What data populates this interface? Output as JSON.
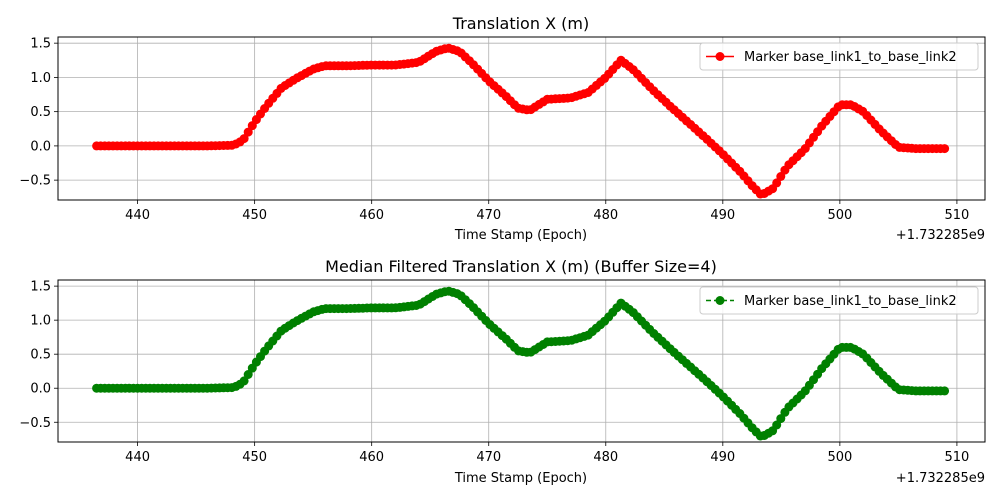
{
  "figure": {
    "background": "#ffffff"
  },
  "chart_data": [
    {
      "type": "scatter",
      "title": "Translation X (m)",
      "xlabel": "Time Stamp (Epoch)",
      "ylabel": "",
      "x_offset_label": "+1.732285e9",
      "xlim": [
        433.2,
        512.4
      ],
      "ylim": [
        -0.79,
        1.59
      ],
      "xticks": [
        440,
        450,
        460,
        470,
        480,
        490,
        500,
        510
      ],
      "xtick_labels": [
        "440",
        "450",
        "460",
        "470",
        "480",
        "490",
        "500",
        "510"
      ],
      "yticks": [
        -0.5,
        0.0,
        0.5,
        1.0,
        1.5
      ],
      "ytick_labels": [
        "−0.5",
        "0.0",
        "0.5",
        "1.0",
        "1.5"
      ],
      "grid": true,
      "legend_position": "top-right",
      "series": [
        {
          "name": "Marker base_link1_to_base_link2",
          "color": "#ff0000",
          "line_style": "solid",
          "marker": "circle",
          "sample_spacing": 0.35,
          "knots": [
            [
              436.5,
              0.0
            ],
            [
              446.0,
              0.0
            ],
            [
              448.2,
              0.01
            ],
            [
              449.0,
              0.08
            ],
            [
              450.0,
              0.35
            ],
            [
              451.0,
              0.58
            ],
            [
              452.3,
              0.85
            ],
            [
              453.5,
              0.98
            ],
            [
              455.0,
              1.12
            ],
            [
              456.0,
              1.17
            ],
            [
              458.0,
              1.17
            ],
            [
              460.0,
              1.18
            ],
            [
              462.0,
              1.18
            ],
            [
              464.0,
              1.22
            ],
            [
              465.5,
              1.38
            ],
            [
              466.5,
              1.43
            ],
            [
              467.5,
              1.38
            ],
            [
              468.5,
              1.22
            ],
            [
              470.0,
              0.95
            ],
            [
              471.5,
              0.72
            ],
            [
              472.5,
              0.55
            ],
            [
              473.5,
              0.52
            ],
            [
              475.0,
              0.68
            ],
            [
              477.0,
              0.7
            ],
            [
              478.5,
              0.78
            ],
            [
              480.0,
              1.0
            ],
            [
              481.3,
              1.25
            ],
            [
              482.3,
              1.12
            ],
            [
              484.0,
              0.82
            ],
            [
              485.5,
              0.58
            ],
            [
              487.0,
              0.35
            ],
            [
              488.5,
              0.12
            ],
            [
              490.0,
              -0.12
            ],
            [
              491.5,
              -0.38
            ],
            [
              492.5,
              -0.58
            ],
            [
              493.3,
              -0.72
            ],
            [
              494.3,
              -0.62
            ],
            [
              495.5,
              -0.3
            ],
            [
              497.0,
              -0.05
            ],
            [
              498.5,
              0.3
            ],
            [
              500.0,
              0.6
            ],
            [
              501.0,
              0.6
            ],
            [
              502.0,
              0.5
            ],
            [
              503.5,
              0.22
            ],
            [
              505.0,
              -0.02
            ],
            [
              506.5,
              -0.04
            ],
            [
              509.0,
              -0.04
            ]
          ]
        }
      ]
    },
    {
      "type": "scatter",
      "title": "Median Filtered Translation X (m) (Buffer Size=4)",
      "xlabel": "Time Stamp (Epoch)",
      "ylabel": "",
      "x_offset_label": "+1.732285e9",
      "xlim": [
        433.2,
        512.4
      ],
      "ylim": [
        -0.79,
        1.59
      ],
      "xticks": [
        440,
        450,
        460,
        470,
        480,
        490,
        500,
        510
      ],
      "xtick_labels": [
        "440",
        "450",
        "460",
        "470",
        "480",
        "490",
        "500",
        "510"
      ],
      "yticks": [
        -0.5,
        0.0,
        0.5,
        1.0,
        1.5
      ],
      "ytick_labels": [
        "−0.5",
        "0.0",
        "0.5",
        "1.0",
        "1.5"
      ],
      "grid": true,
      "legend_position": "top-right",
      "series": [
        {
          "name": "Marker base_link1_to_base_link2",
          "color": "#008000",
          "line_style": "dashed",
          "marker": "circle",
          "sample_spacing": 0.35,
          "knots": [
            [
              436.5,
              0.0
            ],
            [
              446.0,
              0.0
            ],
            [
              448.2,
              0.01
            ],
            [
              449.0,
              0.08
            ],
            [
              450.0,
              0.35
            ],
            [
              451.0,
              0.58
            ],
            [
              452.3,
              0.85
            ],
            [
              453.5,
              0.98
            ],
            [
              455.0,
              1.12
            ],
            [
              456.0,
              1.17
            ],
            [
              458.0,
              1.17
            ],
            [
              460.0,
              1.18
            ],
            [
              462.0,
              1.18
            ],
            [
              464.0,
              1.22
            ],
            [
              465.5,
              1.38
            ],
            [
              466.5,
              1.43
            ],
            [
              467.5,
              1.38
            ],
            [
              468.5,
              1.22
            ],
            [
              470.0,
              0.95
            ],
            [
              471.5,
              0.72
            ],
            [
              472.5,
              0.55
            ],
            [
              473.5,
              0.52
            ],
            [
              475.0,
              0.68
            ],
            [
              477.0,
              0.7
            ],
            [
              478.5,
              0.78
            ],
            [
              480.0,
              1.0
            ],
            [
              481.3,
              1.25
            ],
            [
              482.3,
              1.12
            ],
            [
              484.0,
              0.82
            ],
            [
              485.5,
              0.58
            ],
            [
              487.0,
              0.35
            ],
            [
              488.5,
              0.12
            ],
            [
              490.0,
              -0.12
            ],
            [
              491.5,
              -0.38
            ],
            [
              492.5,
              -0.58
            ],
            [
              493.3,
              -0.72
            ],
            [
              494.3,
              -0.62
            ],
            [
              495.5,
              -0.3
            ],
            [
              497.0,
              -0.05
            ],
            [
              498.5,
              0.3
            ],
            [
              500.0,
              0.6
            ],
            [
              501.0,
              0.6
            ],
            [
              502.0,
              0.5
            ],
            [
              503.5,
              0.22
            ],
            [
              505.0,
              -0.02
            ],
            [
              506.5,
              -0.04
            ],
            [
              509.0,
              -0.04
            ]
          ]
        }
      ]
    }
  ]
}
